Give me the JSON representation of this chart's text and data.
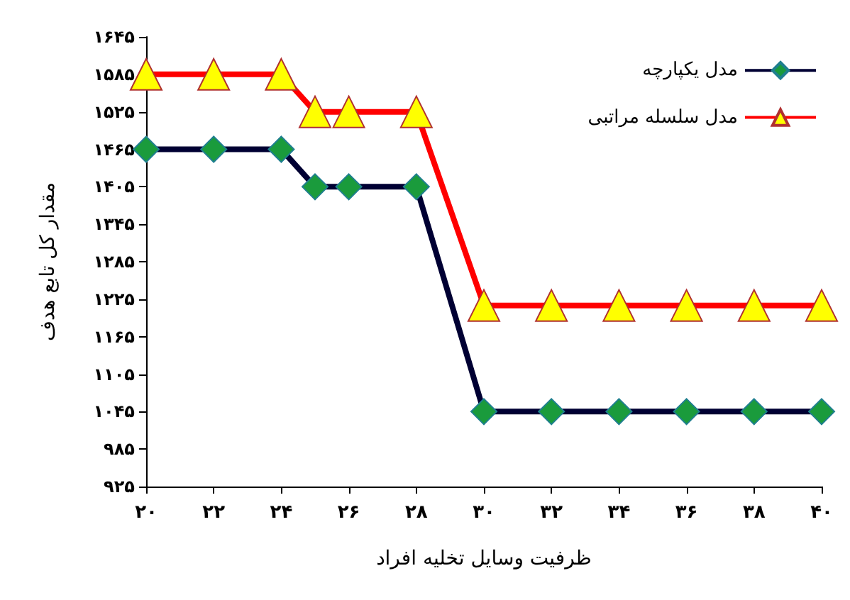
{
  "chart_data": {
    "type": "line",
    "xlabel": "ظرفیت وسایل تخلیه افراد",
    "ylabel": "مقدار کل تابع هدف",
    "x": [
      20,
      22,
      24,
      25,
      26,
      28,
      30,
      32,
      34,
      36,
      38,
      40
    ],
    "xlim": [
      20,
      40
    ],
    "xticks": [
      {
        "value": 20,
        "label": "۲۰"
      },
      {
        "value": 22,
        "label": "۲۲"
      },
      {
        "value": 24,
        "label": "۲۴"
      },
      {
        "value": 26,
        "label": "۲۶"
      },
      {
        "value": 28,
        "label": "۲۸"
      },
      {
        "value": 30,
        "label": "۳۰"
      },
      {
        "value": 32,
        "label": "۳۲"
      },
      {
        "value": 34,
        "label": "۳۴"
      },
      {
        "value": 36,
        "label": "۳۶"
      },
      {
        "value": 38,
        "label": "۳۸"
      },
      {
        "value": 40,
        "label": "۴۰"
      }
    ],
    "ylim": [
      925,
      1645
    ],
    "yticks": [
      {
        "value": 925,
        "label": "۹۲۵"
      },
      {
        "value": 985,
        "label": "۹۸۵"
      },
      {
        "value": 1045,
        "label": "۱۰۴۵"
      },
      {
        "value": 1105,
        "label": "۱۱۰۵"
      },
      {
        "value": 1165,
        "label": "۱۱۶۵"
      },
      {
        "value": 1225,
        "label": "۱۲۲۵"
      },
      {
        "value": 1285,
        "label": "۱۲۸۵"
      },
      {
        "value": 1345,
        "label": "۱۳۴۵"
      },
      {
        "value": 1405,
        "label": "۱۴۰۵"
      },
      {
        "value": 1465,
        "label": "۱۴۶۵"
      },
      {
        "value": 1525,
        "label": "۱۵۲۵"
      },
      {
        "value": 1585,
        "label": "۱۵۸۵"
      },
      {
        "value": 1645,
        "label": "۱۶۴۵"
      }
    ],
    "series": [
      {
        "name": "مدل یکپارچه",
        "color": "#000033",
        "marker": "diamond",
        "values": [
          1465,
          1465,
          1465,
          1405,
          1405,
          1405,
          1045,
          1045,
          1045,
          1045,
          1045,
          1045
        ]
      },
      {
        "name": "مدل سلسله مراتبی",
        "color": "#ff0000",
        "marker": "triangle",
        "values": [
          1585,
          1585,
          1585,
          1525,
          1525,
          1525,
          1215,
          1215,
          1215,
          1215,
          1215,
          1215
        ]
      }
    ],
    "legend": "top right",
    "grid": false
  }
}
